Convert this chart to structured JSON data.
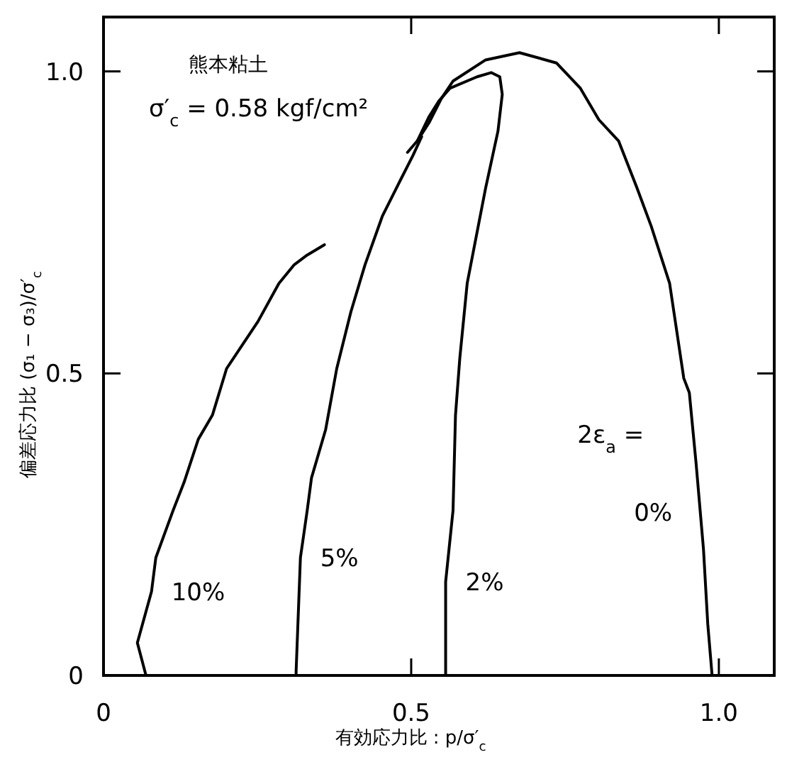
{
  "chart_data": {
    "type": "line",
    "xlabel": "有効応力比 : p/σ′$_{c}$",
    "ylabel": "偏差応力比 (σ₁ − σ₃)/σ′$_{c}$",
    "xlim": [
      0,
      1.09
    ],
    "ylim": [
      0,
      1.09
    ],
    "xticks": [
      0,
      0.5,
      {
        "value": 1,
        "label": "1.0"
      }
    ],
    "yticks": [
      0,
      0.5,
      {
        "value": 1,
        "label": "1.0"
      }
    ],
    "series": [
      {
        "name": "10%",
        "color": "#000000",
        "x": [
          0.069,
          0.055,
          0.078,
          0.085,
          0.113,
          0.131,
          0.154,
          0.177,
          0.2,
          0.251,
          0.285,
          0.31,
          0.331,
          0.359
        ],
        "values": [
          0,
          0.054,
          0.139,
          0.195,
          0.273,
          0.32,
          0.391,
          0.431,
          0.508,
          0.586,
          0.649,
          0.68,
          0.696,
          0.713
        ]
      },
      {
        "name": "5%",
        "color": "#000000",
        "x": [
          0.313,
          0.313,
          0.32,
          0.331,
          0.338,
          0.361,
          0.379,
          0.402,
          0.425,
          0.453,
          0.483,
          0.503,
          0.517
        ],
        "values": [
          0,
          0.007,
          0.195,
          0.273,
          0.327,
          0.407,
          0.508,
          0.602,
          0.68,
          0.76,
          0.821,
          0.861,
          0.892
        ]
      },
      {
        "name": "2%",
        "color": "#000000",
        "x": [
          0.556,
          0.556,
          0.568,
          0.572,
          0.579,
          0.591,
          0.609,
          0.621,
          0.641,
          0.648,
          0.644,
          0.63,
          0.607,
          0.563,
          0.545,
          0.529,
          0.51,
          0.494
        ],
        "values": [
          0,
          0.155,
          0.273,
          0.431,
          0.525,
          0.649,
          0.744,
          0.807,
          0.901,
          0.962,
          0.991,
          0.998,
          0.991,
          0.972,
          0.951,
          0.925,
          0.885,
          0.866
        ]
      },
      {
        "name": "0%",
        "color": "#000000",
        "x": [
          0.989,
          0.982,
          0.975,
          0.963,
          0.952,
          0.943,
          0.92,
          0.89,
          0.867,
          0.837,
          0.805,
          0.775,
          0.736,
          0.676,
          0.621,
          0.568,
          0.549,
          0.529,
          0.51
        ],
        "values": [
          0,
          0.085,
          0.209,
          0.351,
          0.468,
          0.492,
          0.649,
          0.744,
          0.807,
          0.885,
          0.92,
          0.972,
          1.014,
          1.031,
          1.019,
          0.984,
          0.955,
          0.915,
          0.885
        ]
      }
    ],
    "annotations": [
      "熊本粘土",
      "σ′$_{c}$ = 0.58 kgf/cm²",
      "2ε$_{a}$ ="
    ]
  }
}
